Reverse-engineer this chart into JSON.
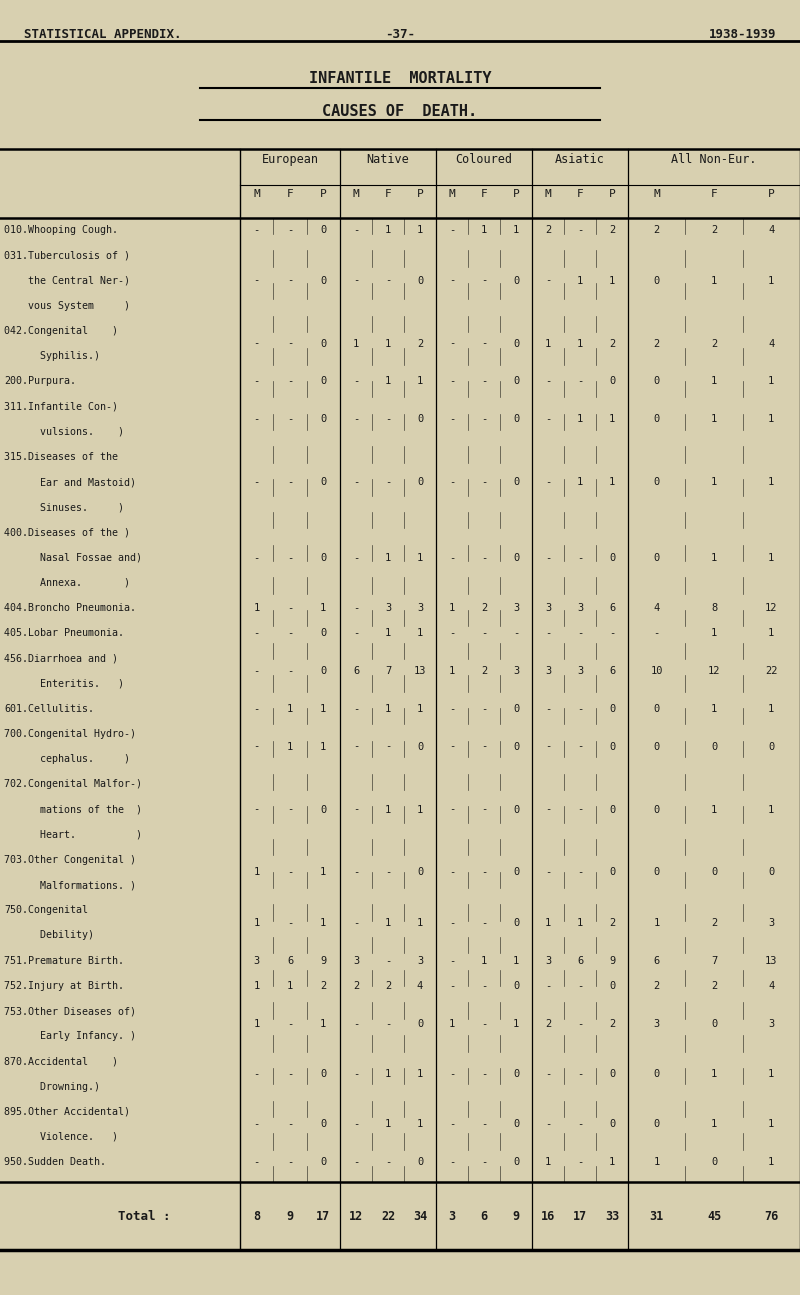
{
  "header_line1": "STATISTICAL APPENDIX.",
  "header_center": "-37-",
  "header_right": "1938-1939",
  "title1": "INFANTILE  MORTALITY",
  "title2": "CAUSES OF  DEATH.",
  "bg_color": "#d8d0b0",
  "col_groups": [
    "European",
    "Native",
    "Coloured",
    "Asiatic",
    "All Non-Eur."
  ],
  "sub_headers": [
    "M",
    "F",
    "P"
  ],
  "rows": [
    {
      "label": [
        "010.Whooping Cough."
      ],
      "data": [
        "-",
        "-",
        "0",
        "-",
        "1",
        "1",
        "-",
        "1",
        "1",
        "2",
        "-",
        "2",
        "2",
        "2",
        "4"
      ]
    },
    {
      "label": [
        "031.Tuberculosis of )",
        "    the Central Ner-)",
        "    vous System     )"
      ],
      "data": [
        "-",
        "-",
        "0",
        "-",
        "-",
        "0",
        "-",
        "-",
        "0",
        "-",
        "1",
        "1",
        "0",
        "1",
        "1"
      ]
    },
    {
      "label": [
        "042.Congenital    )",
        "      Syphilis.)"
      ],
      "data": [
        "-",
        "-",
        "0",
        "1",
        "1",
        "2",
        "-",
        "-",
        "0",
        "1",
        "1",
        "2",
        "2",
        "2",
        "4"
      ]
    },
    {
      "label": [
        "200.Purpura."
      ],
      "data": [
        "-",
        "-",
        "0",
        "-",
        "1",
        "1",
        "-",
        "-",
        "0",
        "-",
        "-",
        "0",
        "0",
        "1",
        "1"
      ]
    },
    {
      "label": [
        "311.Infantile Con-)",
        "      vulsions.    )"
      ],
      "data": [
        "-",
        "-",
        "0",
        "-",
        "-",
        "0",
        "-",
        "-",
        "0",
        "-",
        "1",
        "1",
        "0",
        "1",
        "1"
      ]
    },
    {
      "label": [
        "315.Diseases of the",
        "      Ear and Mastoid)",
        "      Sinuses.     )"
      ],
      "data": [
        "-",
        "-",
        "0",
        "-",
        "-",
        "0",
        "-",
        "-",
        "0",
        "-",
        "1",
        "1",
        "0",
        "1",
        "1"
      ]
    },
    {
      "label": [
        "400.Diseases of the )",
        "      Nasal Fossae and)",
        "      Annexa.       )"
      ],
      "data": [
        "-",
        "-",
        "0",
        "-",
        "1",
        "1",
        "-",
        "-",
        "0",
        "-",
        "-",
        "0",
        "0",
        "1",
        "1"
      ]
    },
    {
      "label": [
        "404.Broncho Pneumonia."
      ],
      "data": [
        "1",
        "-",
        "1",
        "-",
        "3",
        "3",
        "1",
        "2",
        "3",
        "3",
        "3",
        "6",
        "4",
        "8",
        "12"
      ]
    },
    {
      "label": [
        "405.Lobar Pneumonia."
      ],
      "data": [
        "-",
        "-",
        "0",
        "-",
        "1",
        "1",
        "-",
        "-",
        "-",
        "-",
        "-",
        "-",
        "-",
        "1",
        "1"
      ]
    },
    {
      "label": [
        "456.Diarrhoea and )",
        "      Enteritis.   )"
      ],
      "data": [
        "-",
        "-",
        "0",
        "6",
        "7",
        "13",
        "1",
        "2",
        "3",
        "3",
        "3",
        "6",
        "10",
        "12",
        "22"
      ]
    },
    {
      "label": [
        "601.Cellulitis."
      ],
      "data": [
        "-",
        "1",
        "1",
        "-",
        "1",
        "1",
        "-",
        "-",
        "0",
        "-",
        "-",
        "0",
        "0",
        "1",
        "1"
      ]
    },
    {
      "label": [
        "700.Congenital Hydro-)",
        "      cephalus.     )"
      ],
      "data": [
        "-",
        "1",
        "1",
        "-",
        "-",
        "0",
        "-",
        "-",
        "0",
        "-",
        "-",
        "0",
        "0",
        "0",
        "0"
      ]
    },
    {
      "label": [
        "702.Congenital Malfor-)",
        "      mations of the  )",
        "      Heart.          )"
      ],
      "data": [
        "-",
        "-",
        "0",
        "-",
        "1",
        "1",
        "-",
        "-",
        "0",
        "-",
        "-",
        "0",
        "0",
        "1",
        "1"
      ]
    },
    {
      "label": [
        "703.Other Congenital )",
        "      Malformations. )"
      ],
      "data": [
        "1",
        "-",
        "1",
        "-",
        "-",
        "0",
        "-",
        "-",
        "0",
        "-",
        "-",
        "0",
        "0",
        "0",
        "0"
      ]
    },
    {
      "label": [
        "750.Congenital",
        "      Debility)"
      ],
      "data": [
        "1",
        "-",
        "1",
        "-",
        "1",
        "1",
        "-",
        "-",
        "0",
        "1",
        "1",
        "2",
        "1",
        "2",
        "3"
      ]
    },
    {
      "label": [
        "751.Premature Birth."
      ],
      "data": [
        "3",
        "6",
        "9",
        "3",
        "-",
        "3",
        "-",
        "1",
        "1",
        "3",
        "6",
        "9",
        "6",
        "7",
        "13"
      ]
    },
    {
      "label": [
        "752.Injury at Birth."
      ],
      "data": [
        "1",
        "1",
        "2",
        "2",
        "2",
        "4",
        "-",
        "-",
        "0",
        "-",
        "-",
        "0",
        "2",
        "2",
        "4"
      ]
    },
    {
      "label": [
        "753.Other Diseases of)",
        "      Early Infancy. )"
      ],
      "data": [
        "1",
        "-",
        "1",
        "-",
        "-",
        "0",
        "1",
        "-",
        "1",
        "2",
        "-",
        "2",
        "3",
        "0",
        "3"
      ]
    },
    {
      "label": [
        "870.Accidental    )",
        "      Drowning.)"
      ],
      "data": [
        "-",
        "-",
        "0",
        "-",
        "1",
        "1",
        "-",
        "-",
        "0",
        "-",
        "-",
        "0",
        "0",
        "1",
        "1"
      ]
    },
    {
      "label": [
        "895.Other Accidental)",
        "      Violence.   )"
      ],
      "data": [
        "-",
        "-",
        "0",
        "-",
        "1",
        "1",
        "-",
        "-",
        "0",
        "-",
        "-",
        "0",
        "0",
        "1",
        "1"
      ]
    },
    {
      "label": [
        "950.Sudden Death."
      ],
      "data": [
        "-",
        "-",
        "0",
        "-",
        "-",
        "0",
        "-",
        "-",
        "0",
        "1",
        "-",
        "1",
        "1",
        "0",
        "1"
      ]
    }
  ],
  "totals": {
    "label": "Total :",
    "data": [
      "8",
      "9",
      "17",
      "12",
      "22",
      "34",
      "3",
      "6",
      "9",
      "16",
      "17",
      "33",
      "31",
      "45",
      "76"
    ]
  }
}
